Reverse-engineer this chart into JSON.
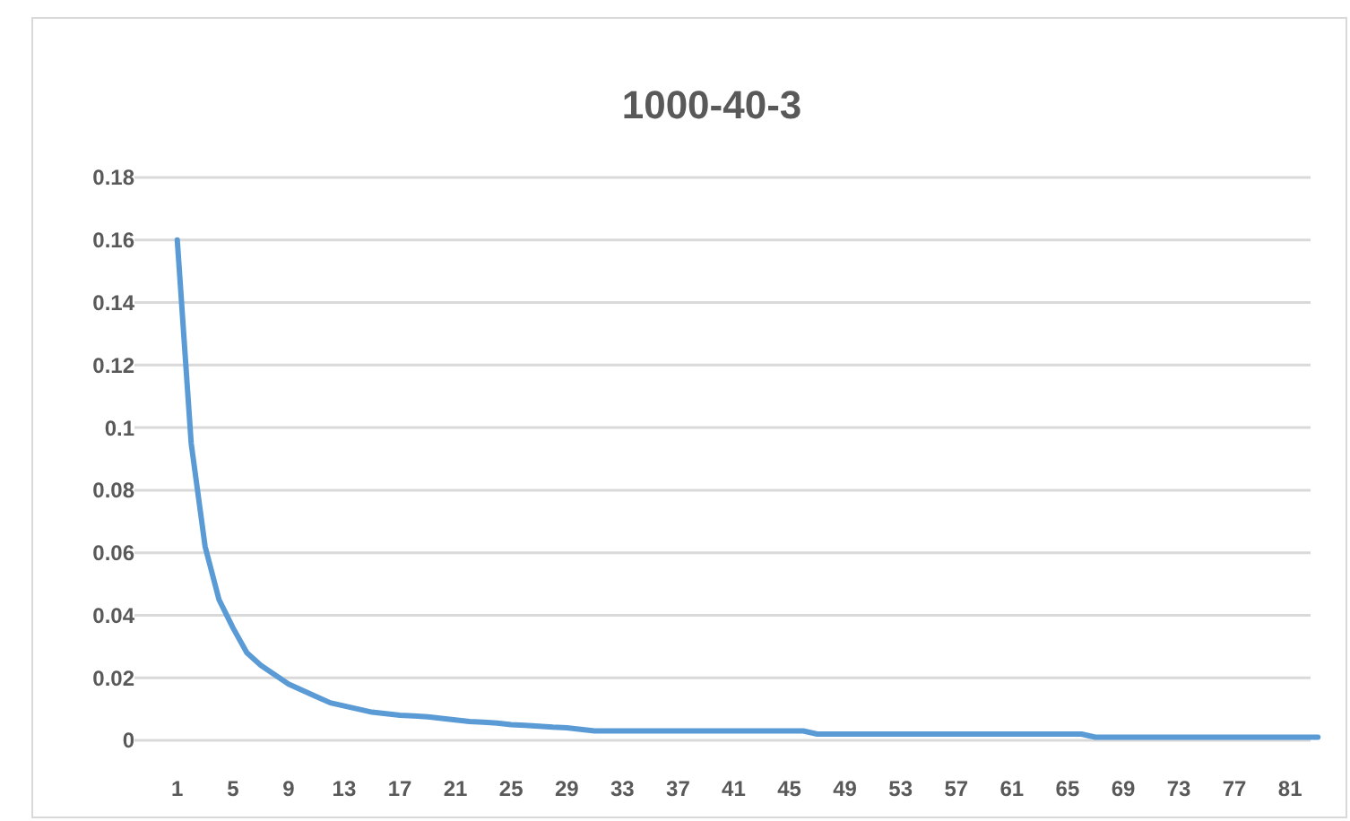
{
  "chart_data": {
    "type": "line",
    "title": "1000-40-3",
    "categories": [
      "1",
      null,
      null,
      null,
      "5",
      null,
      null,
      null,
      "9",
      null,
      null,
      null,
      "13",
      null,
      null,
      null,
      "17",
      null,
      null,
      null,
      "21",
      null,
      null,
      null,
      "25",
      null,
      null,
      null,
      "29",
      null,
      null,
      null,
      "33",
      null,
      null,
      null,
      "37",
      null,
      null,
      null,
      "41",
      null,
      null,
      null,
      "45",
      null,
      null,
      null,
      "49",
      null,
      null,
      null,
      "53",
      null,
      null,
      null,
      "57",
      null,
      null,
      null,
      "61",
      null,
      null,
      null,
      "65",
      null,
      null,
      null,
      "69",
      null,
      null,
      null,
      "73",
      null,
      null,
      null,
      "77",
      null,
      null,
      null,
      "81",
      null,
      null
    ],
    "series": [
      {
        "color": "#5b9bd5",
        "values": [
          0.16,
          0.095,
          0.062,
          0.045,
          0.036,
          0.028,
          0.024,
          0.021,
          0.018,
          0.016,
          0.014,
          0.012,
          0.011,
          0.01,
          0.009,
          0.0085,
          0.008,
          0.0078,
          0.0075,
          0.007,
          0.0065,
          0.006,
          0.0058,
          0.0055,
          0.005,
          0.0048,
          0.0045,
          0.0042,
          0.004,
          0.0035,
          0.003,
          0.003,
          0.003,
          0.003,
          0.003,
          0.003,
          0.003,
          0.003,
          0.003,
          0.003,
          0.003,
          0.003,
          0.003,
          0.003,
          0.003,
          0.003,
          0.002,
          0.002,
          0.002,
          0.002,
          0.002,
          0.002,
          0.002,
          0.002,
          0.002,
          0.002,
          0.002,
          0.002,
          0.002,
          0.002,
          0.002,
          0.002,
          0.002,
          0.002,
          0.002,
          0.002,
          0.001,
          0.001,
          0.001,
          0.001,
          0.001,
          0.001,
          0.001,
          0.001,
          0.001,
          0.001,
          0.001,
          0.001,
          0.001,
          0.001,
          0.001,
          0.001,
          0.001
        ]
      }
    ],
    "ylim": [
      0,
      0.18
    ],
    "yticks": [
      0,
      0.02,
      0.04,
      0.06,
      0.08,
      0.1,
      0.12,
      0.14,
      0.16,
      0.18
    ],
    "grid": true,
    "marker": "none",
    "line_style": "solid"
  }
}
